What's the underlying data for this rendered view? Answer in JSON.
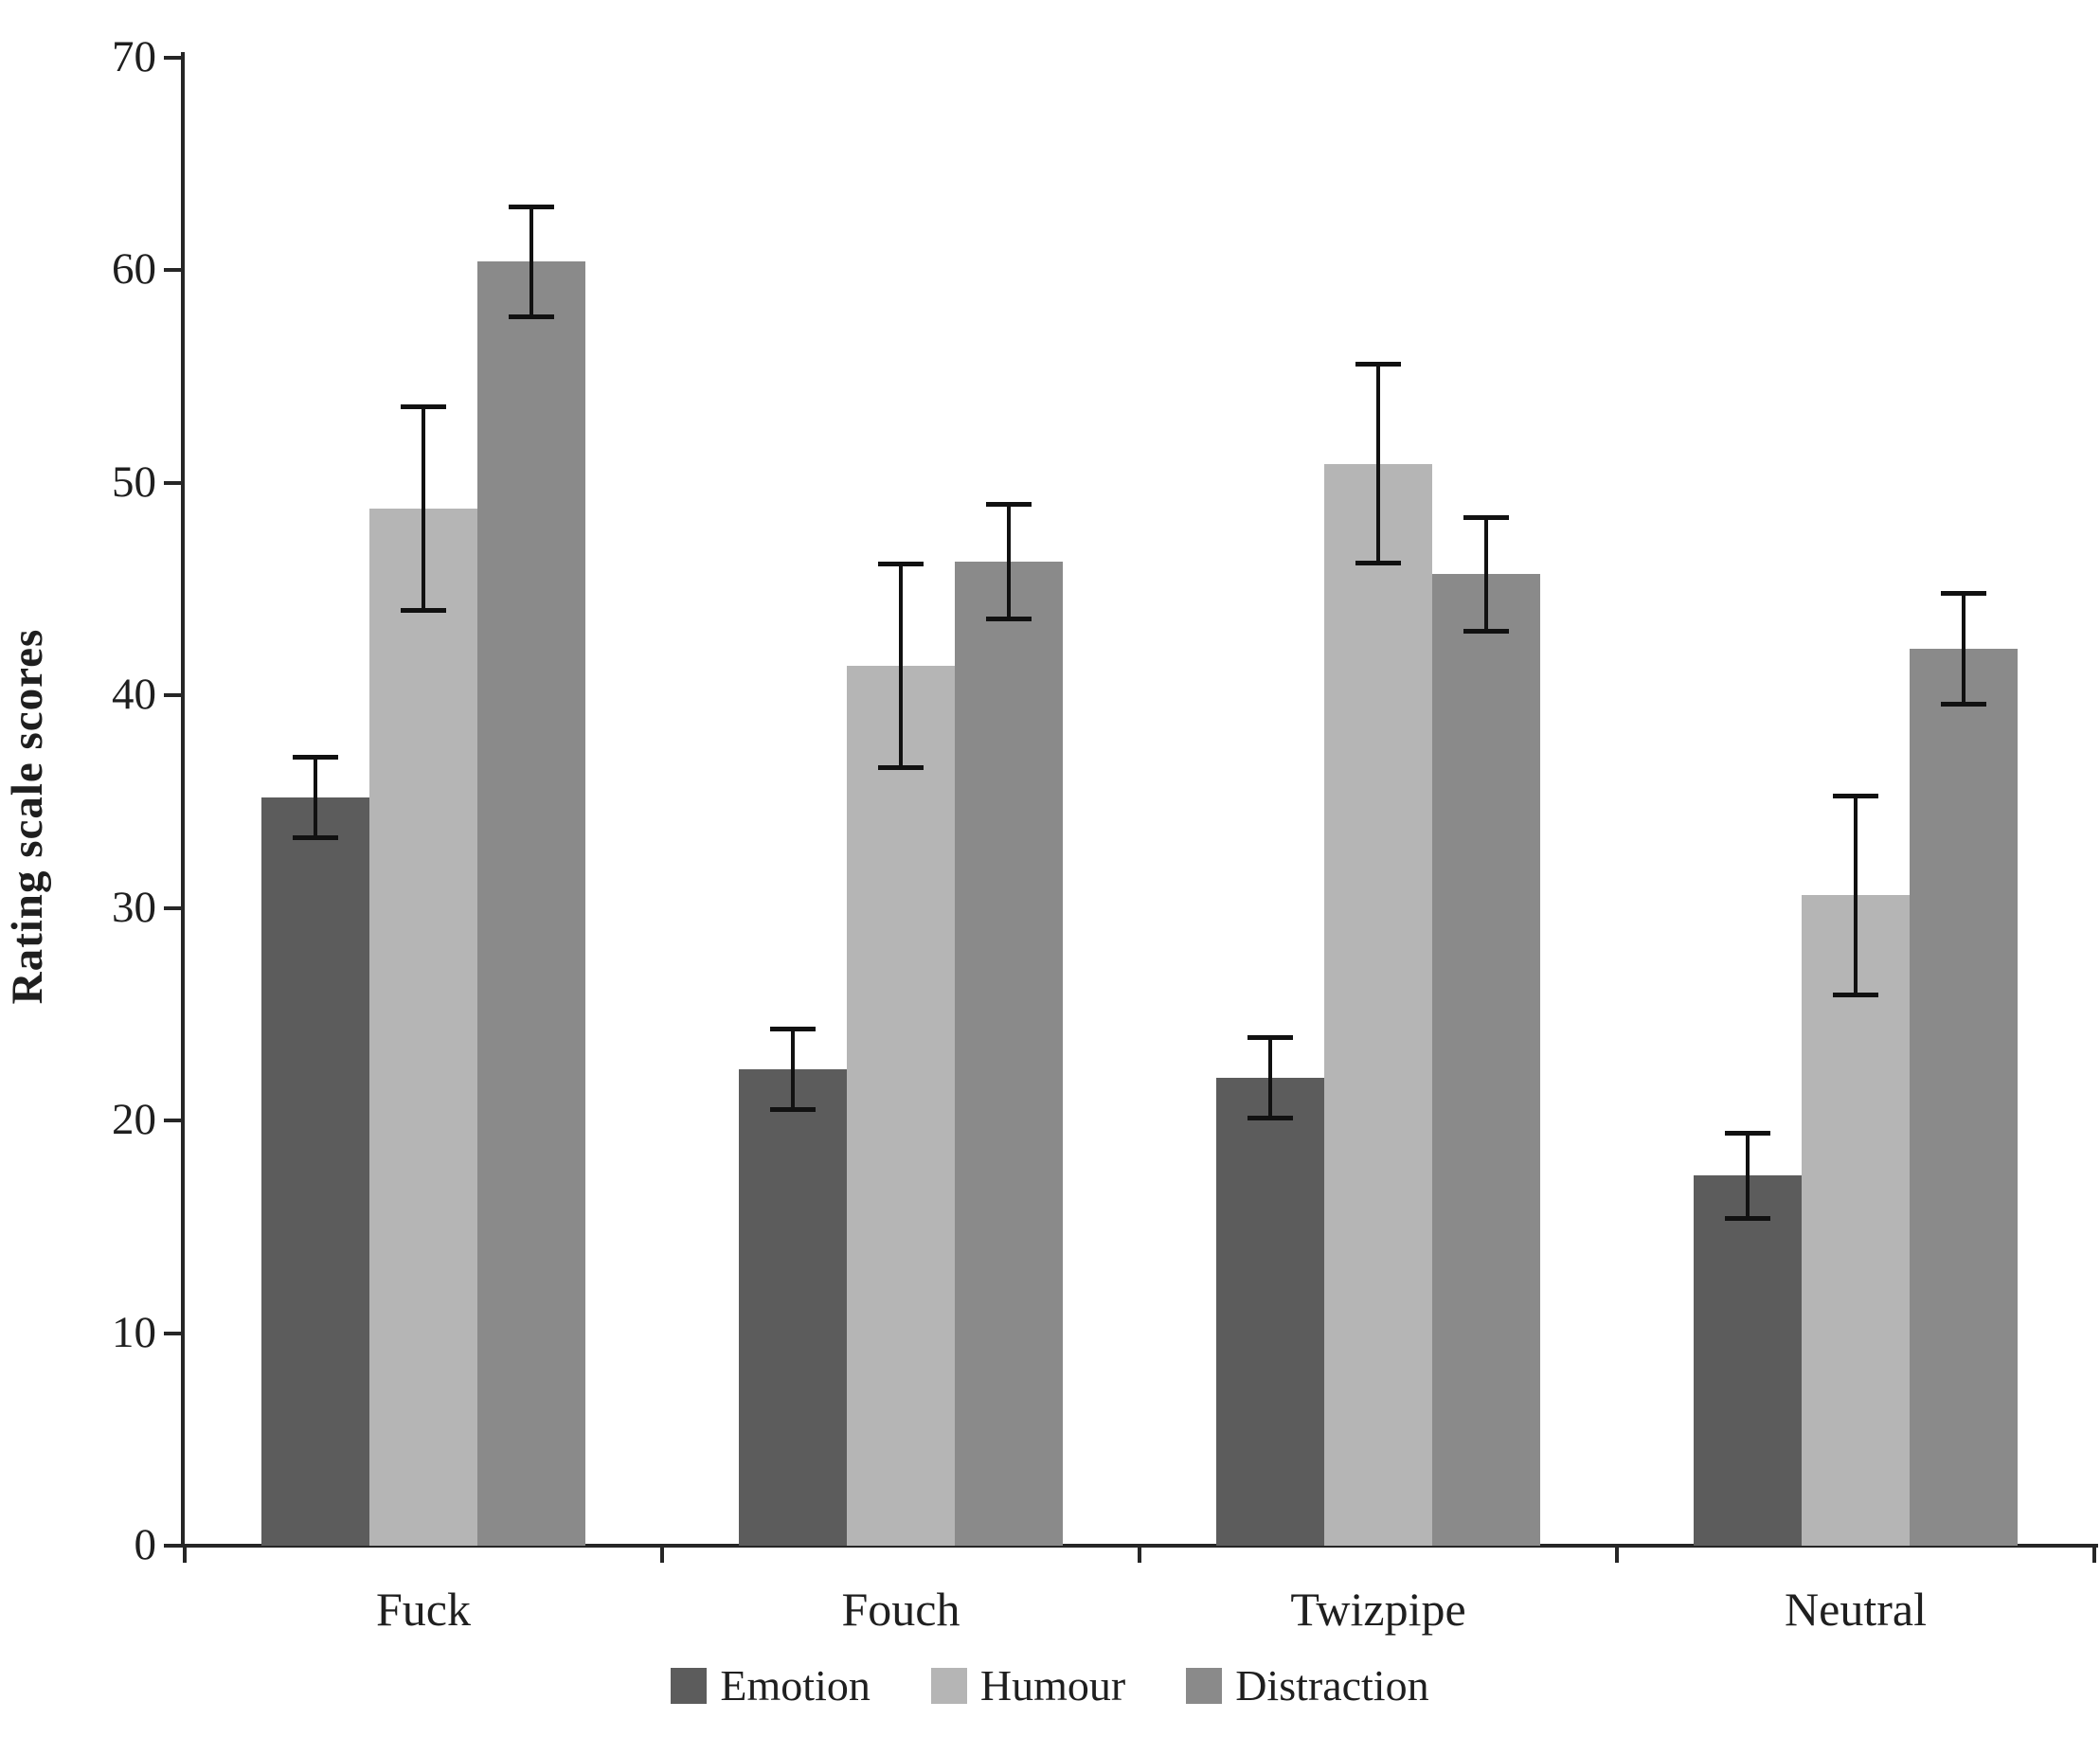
{
  "figure": {
    "y_axis_title": "Rating scale scores"
  },
  "chart_data": {
    "type": "bar",
    "title": "",
    "xlabel": "",
    "ylabel": "Rating scale scores",
    "ylim": [
      0,
      70
    ],
    "yticks": [
      0,
      10,
      20,
      30,
      40,
      50,
      60,
      70
    ],
    "grid": false,
    "legend_position": "bottom",
    "categories": [
      "Fuck",
      "Fouch",
      "Twizpipe",
      "Neutral"
    ],
    "series": [
      {
        "name": "Emotion",
        "color": "#5c5c5c",
        "values": [
          35.2,
          22.4,
          22.0,
          17.4
        ],
        "errors": [
          2.0,
          2.0,
          2.0,
          2.1
        ]
      },
      {
        "name": "Humour",
        "color": "#b5b5b5",
        "values": [
          48.8,
          41.4,
          50.9,
          30.6
        ],
        "errors": [
          4.9,
          4.9,
          4.8,
          4.8
        ]
      },
      {
        "name": "Distraction",
        "color": "#8a8a8a",
        "values": [
          60.4,
          46.3,
          45.7,
          42.2
        ],
        "errors": [
          2.7,
          2.8,
          2.8,
          2.7
        ]
      }
    ]
  }
}
